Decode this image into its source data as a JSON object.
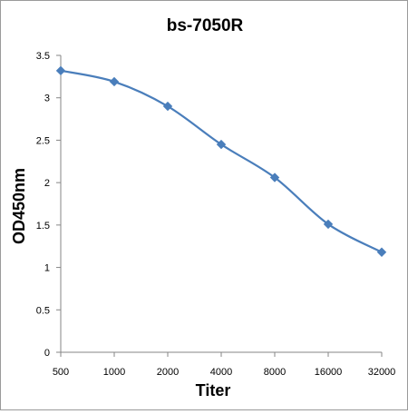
{
  "chart_data": {
    "type": "line",
    "title": "bs-7050R",
    "xlabel": "Titer",
    "ylabel": "OD450nm",
    "categories": [
      "500",
      "1000",
      "2000",
      "4000",
      "8000",
      "16000",
      "32000"
    ],
    "series": [
      {
        "values": [
          3.32,
          3.19,
          2.9,
          2.45,
          2.06,
          1.51,
          1.18
        ]
      }
    ],
    "ylim": [
      0,
      3.5
    ],
    "yticks": [
      "0",
      "0.5",
      "1",
      "1.5",
      "2",
      "2.5",
      "3",
      "3.5"
    ],
    "grid": false,
    "legend": "none",
    "line_color": "#4a7ebb",
    "marker": "diamond"
  }
}
